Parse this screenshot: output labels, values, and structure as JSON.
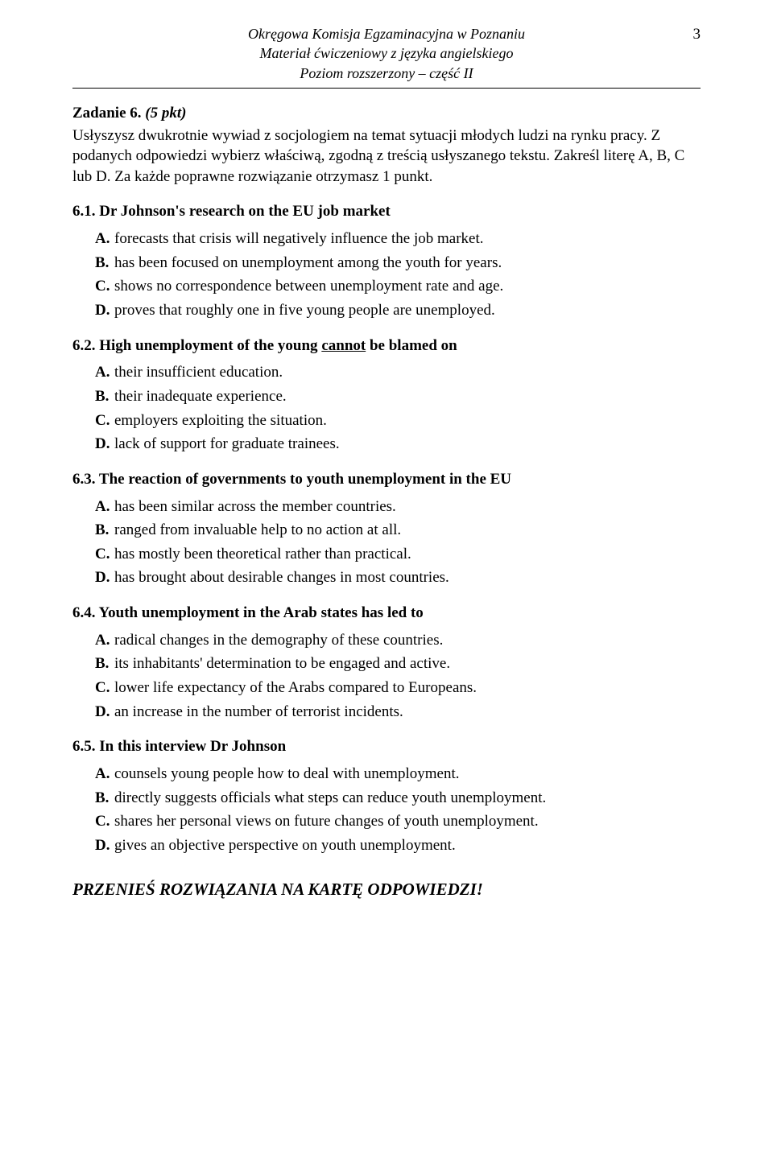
{
  "page": {
    "number": "3",
    "header": {
      "line1": "Okręgowa Komisja Egzaminacyjna w Poznaniu",
      "line2": "Materiał ćwiczeniowy z języka angielskiego",
      "line3": "Poziom rozszerzony – część II"
    },
    "task": {
      "label": "Zadanie 6.",
      "points": "(5 pkt)",
      "instructions": "Usłyszysz dwukrotnie wywiad z socjologiem na temat sytuacji młodych ludzi na rynku pracy. Z podanych odpowiedzi wybierz właściwą, zgodną z treścią usłyszanego tekstu. Zakreśl literę A, B, C lub D. Za każde poprawne rozwiązanie otrzymasz 1 punkt."
    },
    "questions": [
      {
        "num": "6.1.",
        "stem": "Dr Johnson's research on the EU job market",
        "underline_word": "",
        "options": {
          "A": "forecasts that crisis will negatively influence the job market.",
          "B": "has been focused on unemployment among the youth for years.",
          "C": "shows no correspondence between unemployment rate and age.",
          "D": "proves that roughly one in five young people are unemployed."
        }
      },
      {
        "num": "6.2.",
        "stem_before": "High unemployment of the young ",
        "underline_word": "cannot",
        "stem_after": " be blamed on",
        "options": {
          "A": "their insufficient education.",
          "B": "their inadequate experience.",
          "C": "employers exploiting the situation.",
          "D": "lack of support for graduate trainees."
        }
      },
      {
        "num": "6.3.",
        "stem": "The reaction of governments to youth unemployment in the EU",
        "underline_word": "",
        "options": {
          "A": "has been similar across the member countries.",
          "B": "ranged from invaluable help to no action at all.",
          "C": "has mostly been theoretical rather than practical.",
          "D": "has brought about desirable changes in most countries."
        }
      },
      {
        "num": "6.4.",
        "stem": "Youth unemployment in the Arab states has led to",
        "underline_word": "",
        "options": {
          "A": "radical changes in the demography of these countries.",
          "B": "its inhabitants' determination to be engaged and active.",
          "C": "lower life expectancy of the Arabs compared to Europeans.",
          "D": "an increase in the number of terrorist incidents."
        }
      },
      {
        "num": "6.5.",
        "stem": "In this interview Dr Johnson",
        "underline_word": "",
        "options": {
          "A": "counsels young people how to deal with unemployment.",
          "B": "directly suggests officials what steps can reduce youth unemployment.",
          "C": "shares her personal views on future changes of youth unemployment.",
          "D": "gives an objective perspective on youth unemployment."
        }
      }
    ],
    "footer_instruction": "PRZENIEŚ ROZWIĄZANIA NA KARTĘ ODPOWIEDZI!"
  },
  "letters": {
    "A": "A.",
    "B": "B.",
    "C": "C.",
    "D": "D."
  }
}
